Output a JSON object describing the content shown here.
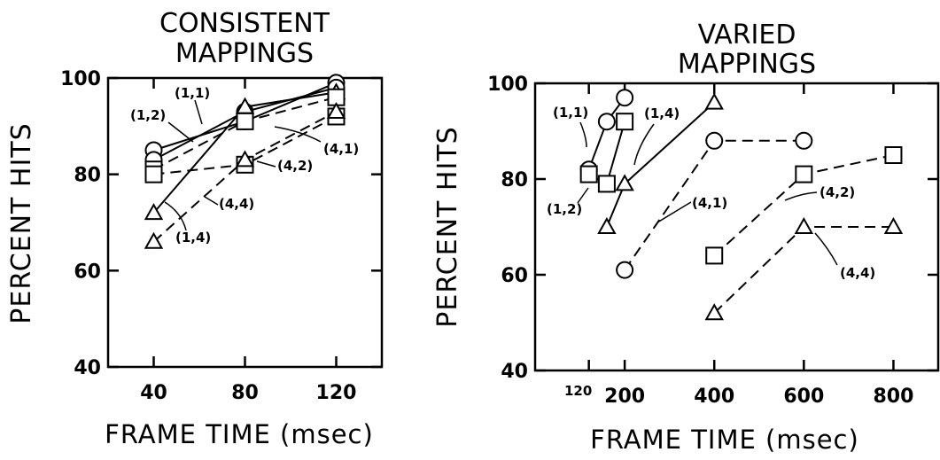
{
  "chart_data": [
    {
      "type": "line",
      "title": "CONSISTENT MAPPINGS",
      "title_lines": [
        "CONSISTENT",
        "MAPPINGS"
      ],
      "xlabel": "FRAME TIME (msec)",
      "ylabel": "PERCENT HITS",
      "xlim": [
        20,
        140
      ],
      "ylim": [
        40,
        100
      ],
      "x_ticks": [
        "40",
        "80",
        "120"
      ],
      "y_ticks": [
        "40",
        "60",
        "80",
        "100"
      ],
      "series": [
        {
          "name": "(1,1)",
          "marker": "circle",
          "line": "solid",
          "x": [
            40,
            80,
            120
          ],
          "y": [
            85,
            91,
            99
          ]
        },
        {
          "name": "(1,2)",
          "marker": "circle",
          "line": "solid",
          "x": [
            40,
            80,
            120
          ],
          "y": [
            83,
            93,
            98
          ]
        },
        {
          "name": "(1,4)",
          "marker": "triangle",
          "line": "solid",
          "x": [
            40,
            80,
            120
          ],
          "y": [
            72,
            94,
            97
          ]
        },
        {
          "name": "(4,1)",
          "marker": "square",
          "line": "dashed",
          "x": [
            40,
            80,
            120
          ],
          "y": [
            81,
            91,
            96
          ]
        },
        {
          "name": "(4,2)",
          "marker": "square",
          "line": "dashed",
          "x": [
            40,
            80,
            120
          ],
          "y": [
            80,
            82,
            92
          ]
        },
        {
          "name": "(4,4)",
          "marker": "triangle",
          "line": "dashed",
          "x": [
            40,
            80,
            120
          ],
          "y": [
            66,
            83,
            93
          ]
        }
      ],
      "annotations": [
        "(1,2)",
        "(1,1)",
        "(4,1)",
        "(4,2)",
        "(4,4)",
        "(1,4)"
      ],
      "grid": false
    },
    {
      "type": "line",
      "title": "VARIED MAPPINGS",
      "title_lines": [
        "VARIED",
        "MAPPINGS"
      ],
      "xlabel": "FRAME TIME (msec)",
      "ylabel": "PERCENT HITS",
      "xlim": [
        0,
        900
      ],
      "ylim": [
        40,
        100
      ],
      "x_ticks": [
        "120",
        "200",
        "400",
        "600",
        "800"
      ],
      "y_ticks": [
        "40",
        "60",
        "80",
        "100"
      ],
      "series": [
        {
          "name": "(1,1)",
          "marker": "circle",
          "line": "solid",
          "x": [
            120,
            160,
            200
          ],
          "y": [
            82,
            92,
            97
          ]
        },
        {
          "name": "(1,2)",
          "marker": "square",
          "line": "solid",
          "x": [
            120,
            160,
            200
          ],
          "y": [
            81,
            79,
            92
          ]
        },
        {
          "name": "(1,4)",
          "marker": "triangle",
          "line": "solid",
          "x": [
            160,
            200,
            400
          ],
          "y": [
            70,
            79,
            96
          ]
        },
        {
          "name": "(4,1)",
          "marker": "circle",
          "line": "dashed",
          "x": [
            200,
            400,
            600
          ],
          "y": [
            61,
            88,
            88
          ]
        },
        {
          "name": "(4,2)",
          "marker": "square",
          "line": "dashed",
          "x": [
            400,
            600,
            800
          ],
          "y": [
            64,
            81,
            85
          ]
        },
        {
          "name": "(4,4)",
          "marker": "triangle",
          "line": "dashed",
          "x": [
            400,
            600,
            800
          ],
          "y": [
            52,
            70,
            70
          ]
        }
      ],
      "annotations": [
        "(1,1)",
        "(1,4)",
        "(1,2)",
        "(4,1)",
        "(4,2)",
        "(4,4)"
      ],
      "grid": false
    }
  ]
}
